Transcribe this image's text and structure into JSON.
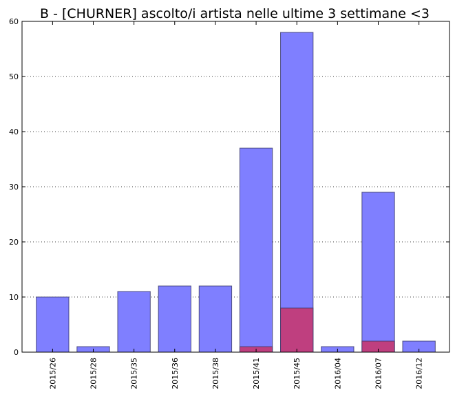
{
  "chart_data": {
    "type": "bar",
    "title": "B - [CHURNER] ascolto/i artista nelle ultime 3 settimane <3",
    "xlabel": "",
    "ylabel": "",
    "categories": [
      "2015/26",
      "2015/28",
      "2015/35",
      "2015/36",
      "2015/38",
      "2015/41",
      "2015/45",
      "2016/04",
      "2016/07",
      "2016/12"
    ],
    "series": [
      {
        "values": [
          10,
          1,
          11,
          12,
          12,
          37,
          58,
          1,
          29,
          2
        ],
        "color": "#7f7fff"
      },
      {
        "values": [
          0,
          0,
          0,
          0,
          0,
          1,
          8,
          0,
          2,
          0
        ],
        "color": "#bf3f7f"
      }
    ],
    "ylim": [
      0,
      60
    ],
    "yticks": [
      0,
      10,
      20,
      30,
      40,
      50,
      60
    ],
    "grid": "y-dotted",
    "legend": "none"
  }
}
